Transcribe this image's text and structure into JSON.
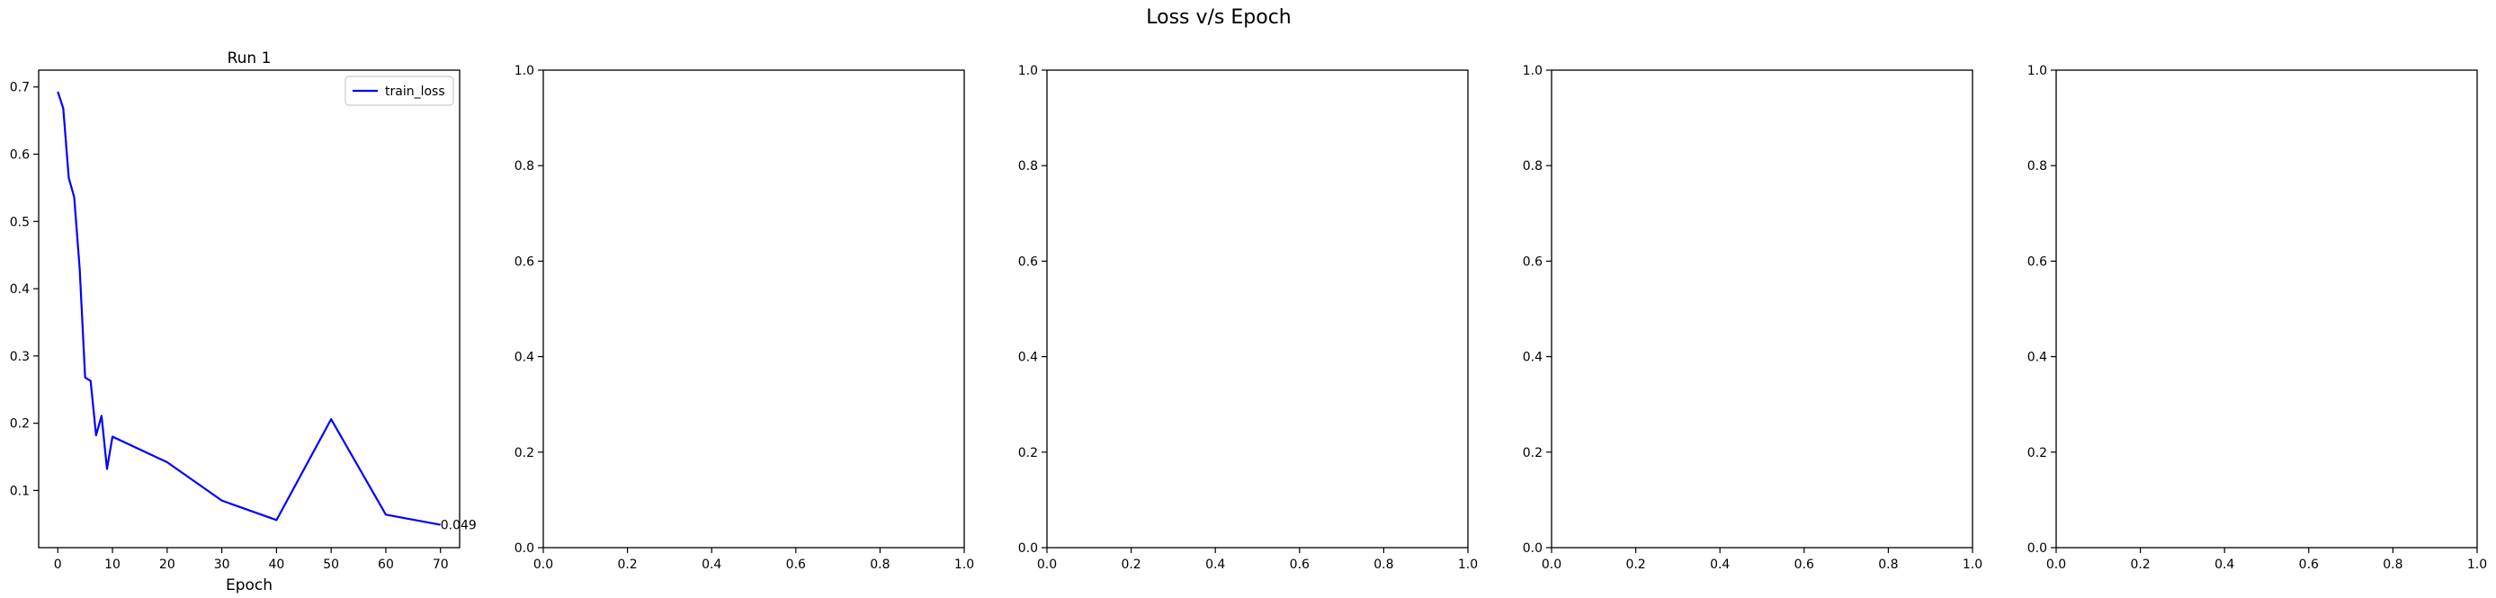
{
  "figure": {
    "title": "Loss v/s Epoch"
  },
  "chart_data": [
    {
      "type": "line",
      "title": "Run 1",
      "xlabel": "Epoch",
      "ylabel": "",
      "xlim": [
        -3.5,
        73.5
      ],
      "ylim": [
        0.015,
        0.725
      ],
      "xticks": [
        0,
        10,
        20,
        30,
        40,
        50,
        60,
        70
      ],
      "yticks": [
        0.1,
        0.2,
        0.3,
        0.4,
        0.5,
        0.6,
        0.7
      ],
      "grid": false,
      "legend": {
        "position": "top-right",
        "entries": [
          "train_loss"
        ]
      },
      "series": [
        {
          "name": "train_loss",
          "color": "#0000ff",
          "x": [
            0,
            1,
            2,
            3,
            4,
            5,
            6,
            7,
            8,
            9,
            10,
            20,
            30,
            40,
            50,
            60,
            70
          ],
          "y": [
            0.693,
            0.668,
            0.565,
            0.536,
            0.43,
            0.268,
            0.263,
            0.182,
            0.211,
            0.132,
            0.18,
            0.142,
            0.085,
            0.056,
            0.206,
            0.064,
            0.049
          ]
        }
      ],
      "annotations": [
        {
          "text": "0.049",
          "x": 70,
          "y": 0.049
        }
      ]
    },
    {
      "type": "line",
      "title": "",
      "xlabel": "",
      "ylabel": "",
      "xlim": [
        0,
        1
      ],
      "ylim": [
        0,
        1
      ],
      "xticks": [
        0.0,
        0.2,
        0.4,
        0.6,
        0.8,
        1.0
      ],
      "yticks": [
        0.0,
        0.2,
        0.4,
        0.6,
        0.8,
        1.0
      ],
      "series": []
    },
    {
      "type": "line",
      "title": "",
      "xlabel": "",
      "ylabel": "",
      "xlim": [
        0,
        1
      ],
      "ylim": [
        0,
        1
      ],
      "xticks": [
        0.0,
        0.2,
        0.4,
        0.6,
        0.8,
        1.0
      ],
      "yticks": [
        0.0,
        0.2,
        0.4,
        0.6,
        0.8,
        1.0
      ],
      "series": []
    },
    {
      "type": "line",
      "title": "",
      "xlabel": "",
      "ylabel": "",
      "xlim": [
        0,
        1
      ],
      "ylim": [
        0,
        1
      ],
      "xticks": [
        0.0,
        0.2,
        0.4,
        0.6,
        0.8,
        1.0
      ],
      "yticks": [
        0.0,
        0.2,
        0.4,
        0.6,
        0.8,
        1.0
      ],
      "series": []
    },
    {
      "type": "line",
      "title": "",
      "xlabel": "",
      "ylabel": "",
      "xlim": [
        0,
        1
      ],
      "ylim": [
        0,
        1
      ],
      "xticks": [
        0.0,
        0.2,
        0.4,
        0.6,
        0.8,
        1.0
      ],
      "yticks": [
        0.0,
        0.2,
        0.4,
        0.6,
        0.8,
        1.0
      ],
      "series": []
    }
  ]
}
